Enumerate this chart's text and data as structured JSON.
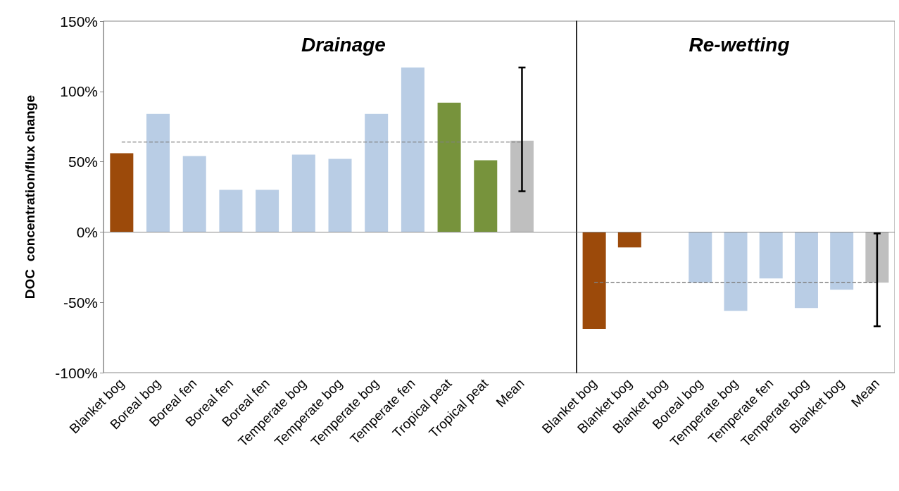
{
  "chart_data": [
    {
      "type": "bar",
      "title": "Drainage",
      "ylabel": "DOC  concentration/flux change",
      "categories": [
        "Blanket bog",
        "Boreal bog",
        "Boreal fen",
        "Boreal fen",
        "Boreal fen",
        "Temperate bog",
        "Temperate bog",
        "Temperate bog",
        "Temperate fen",
        "Tropical peat",
        "Tropical peat",
        "Mean"
      ],
      "series": [
        {
          "values": [
            56,
            84,
            54,
            30,
            30,
            55,
            52,
            84,
            117,
            92,
            51,
            65
          ],
          "colors": [
            "#9c4a0a",
            "#b9cde5",
            "#b9cde5",
            "#b9cde5",
            "#b9cde5",
            "#b9cde5",
            "#b9cde5",
            "#b9cde5",
            "#b9cde5",
            "#77933c",
            "#77933c",
            "#bfbfbf"
          ],
          "errors": [
            null,
            null,
            null,
            null,
            null,
            null,
            null,
            null,
            null,
            null,
            null,
            [
              29,
              117
            ]
          ]
        },
        {
          "type": "line",
          "color": "#808080",
          "line_style": "dashed",
          "marker": "none",
          "values": [
            64,
            64,
            64,
            64,
            64,
            64,
            64,
            64,
            64,
            64,
            64,
            64
          ]
        }
      ],
      "ylim": [
        -100,
        150
      ],
      "yticks": [
        {
          "value": -100,
          "label": "-100%"
        },
        {
          "value": -50,
          "label": "-50%"
        },
        {
          "value": 0,
          "label": "0%"
        },
        {
          "value": 50,
          "label": "50%"
        },
        {
          "value": 100,
          "label": "100%"
        },
        {
          "value": 150,
          "label": "150%"
        }
      ]
    },
    {
      "type": "bar",
      "title": "Re-wetting",
      "tick_labels": "x",
      "categories": [
        "Blanket bog",
        "Blanket bog",
        "Blanket bog",
        "Boreal bog",
        "Temperate bog",
        "Temperate fen",
        "Temperate bog",
        "Blanket bog",
        "Mean"
      ],
      "series": [
        {
          "values": [
            -69,
            -11,
            0,
            -36,
            -56,
            -33,
            -54,
            -41,
            -36
          ],
          "colors": [
            "#9c4a0a",
            "#9c4a0a",
            "#9c4a0a",
            "#b9cde5",
            "#b9cde5",
            "#b9cde5",
            "#b9cde5",
            "#b9cde5",
            "#bfbfbf"
          ],
          "errors": [
            null,
            null,
            null,
            null,
            null,
            null,
            null,
            null,
            [
              -67,
              -1
            ]
          ]
        },
        {
          "type": "line",
          "color": "#808080",
          "line_style": "dashed",
          "marker": "none",
          "values": [
            -36,
            -36,
            -36,
            -36,
            -36,
            -36,
            -36,
            -36,
            -36
          ]
        }
      ],
      "ylim": [
        -100,
        150
      ]
    }
  ]
}
